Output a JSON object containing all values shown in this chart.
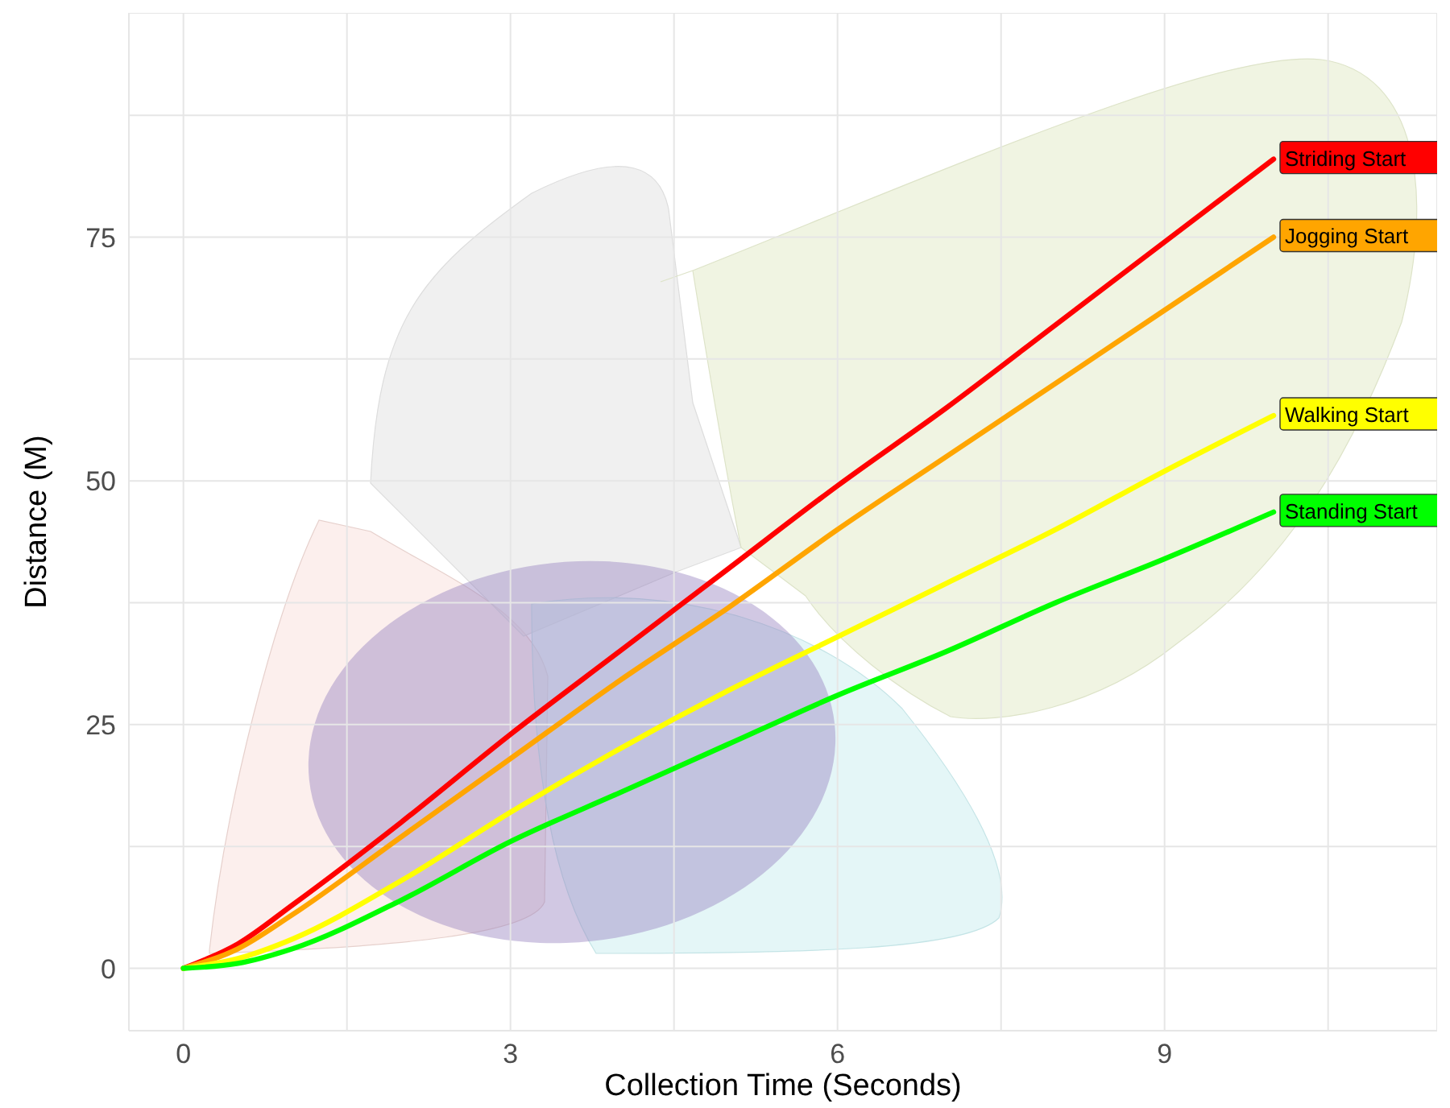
{
  "chart_data": {
    "type": "line",
    "xlabel": "Collection Time (Seconds)",
    "ylabel": "Distance (M)",
    "xlim": [
      -0.5,
      11.5
    ],
    "ylim": [
      -6.4,
      98
    ],
    "xticks": [
      0,
      {
        "value": 1.5,
        "label": null
      },
      3,
      {
        "value": 4.5,
        "label": null
      },
      6,
      {
        "value": 7.5,
        "label": null
      },
      9,
      {
        "value": 10.5,
        "label": null
      }
    ],
    "yticks": [
      0,
      {
        "value": 12.5,
        "label": null
      },
      25,
      {
        "value": 37.5,
        "label": null
      },
      50,
      {
        "value": 62.5,
        "label": null
      },
      75,
      {
        "value": 87.5,
        "label": null
      }
    ],
    "grid": true,
    "legend": false,
    "marker": "none",
    "line_style": "solid",
    "x": [
      0,
      0.5,
      1,
      2,
      3,
      4,
      5,
      6,
      7,
      8,
      9,
      10
    ],
    "series": [
      {
        "name": "Striding Start",
        "color": "#ff0000",
        "values": [
          0,
          2.5,
          6.5,
          15,
          24,
          32.5,
          41,
          49.5,
          57.5,
          66,
          74.5,
          83
        ]
      },
      {
        "name": "Jogging Start",
        "color": "#ffa500",
        "values": [
          0,
          2,
          5.5,
          13.5,
          21.5,
          29.5,
          37,
          45,
          52.5,
          60,
          67.5,
          75
        ]
      },
      {
        "name": "Walking Start",
        "color": "#ffff00",
        "values": [
          0,
          1,
          3,
          9,
          16,
          22.5,
          28.5,
          34,
          39.5,
          45,
          51,
          56.7
        ]
      },
      {
        "name": "Standing Start",
        "color": "#00ff00",
        "values": [
          0,
          0.5,
          2,
          7,
          13,
          18,
          23,
          28,
          32.5,
          37.5,
          42,
          46.8
        ]
      }
    ]
  }
}
